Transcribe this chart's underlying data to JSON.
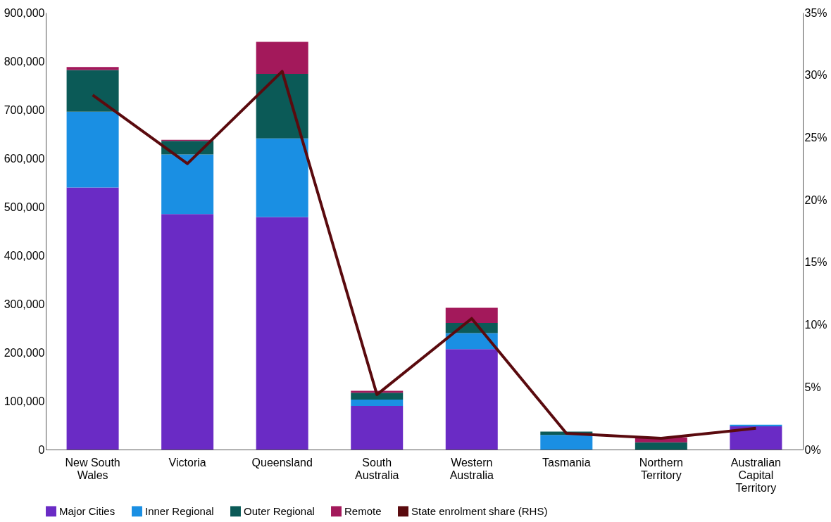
{
  "chart_data": {
    "type": "bar",
    "stacked": true,
    "categories": [
      "New South Wales",
      "Victoria",
      "Queensland",
      "South Australia",
      "Western Australia",
      "Tasmania",
      "Northern Territory",
      "Australian Capital Territory"
    ],
    "series": [
      {
        "name": "Major Cities",
        "color": "#6a2bc5",
        "values": [
          540000,
          485000,
          479000,
          90000,
          207000,
          0,
          0,
          48000
        ]
      },
      {
        "name": "Inner Regional",
        "color": "#1a8fe3",
        "values": [
          156000,
          123000,
          162000,
          13000,
          33000,
          30000,
          0,
          3000
        ]
      },
      {
        "name": "Outer Regional",
        "color": "#0b5a57",
        "values": [
          86000,
          28000,
          133000,
          14000,
          21000,
          7000,
          15000,
          0
        ]
      },
      {
        "name": "Remote",
        "color": "#a3195b",
        "values": [
          6000,
          2000,
          66000,
          4000,
          31000,
          0,
          10000,
          0
        ]
      },
      {
        "name": "State enrolment share (RHS)",
        "type": "line",
        "axis": "y2",
        "color": "#5a0a0e",
        "values": [
          28.4,
          22.9,
          30.3,
          4.4,
          10.5,
          1.3,
          0.9,
          1.7
        ]
      }
    ],
    "ylim": [
      0,
      900000
    ],
    "yticks": [
      0,
      {
        "value": 100000,
        "label": "100,000"
      },
      {
        "value": 200000,
        "label": "200,000"
      },
      {
        "value": 300000,
        "label": "300,000"
      },
      {
        "value": 400000,
        "label": "400,000"
      },
      {
        "value": 500000,
        "label": "500,000"
      },
      {
        "value": 600000,
        "label": "600,000"
      },
      {
        "value": 700000,
        "label": "700,000"
      },
      {
        "value": 800000,
        "label": "800,000"
      },
      {
        "value": 900000,
        "label": "900,000"
      }
    ],
    "y2lim": [
      0,
      35
    ],
    "y2ticks": [
      {
        "value": 0,
        "label": "0%"
      },
      {
        "value": 5,
        "label": "5%"
      },
      {
        "value": 10,
        "label": "10%"
      },
      {
        "value": 15,
        "label": "15%"
      },
      {
        "value": 20,
        "label": "20%"
      },
      {
        "value": 25,
        "label": "25%"
      },
      {
        "value": 30,
        "label": "30%"
      },
      {
        "value": 35,
        "label": "35%"
      }
    ],
    "legend": "bottom",
    "grid": false,
    "marker": "none",
    "line_style": "solid"
  }
}
